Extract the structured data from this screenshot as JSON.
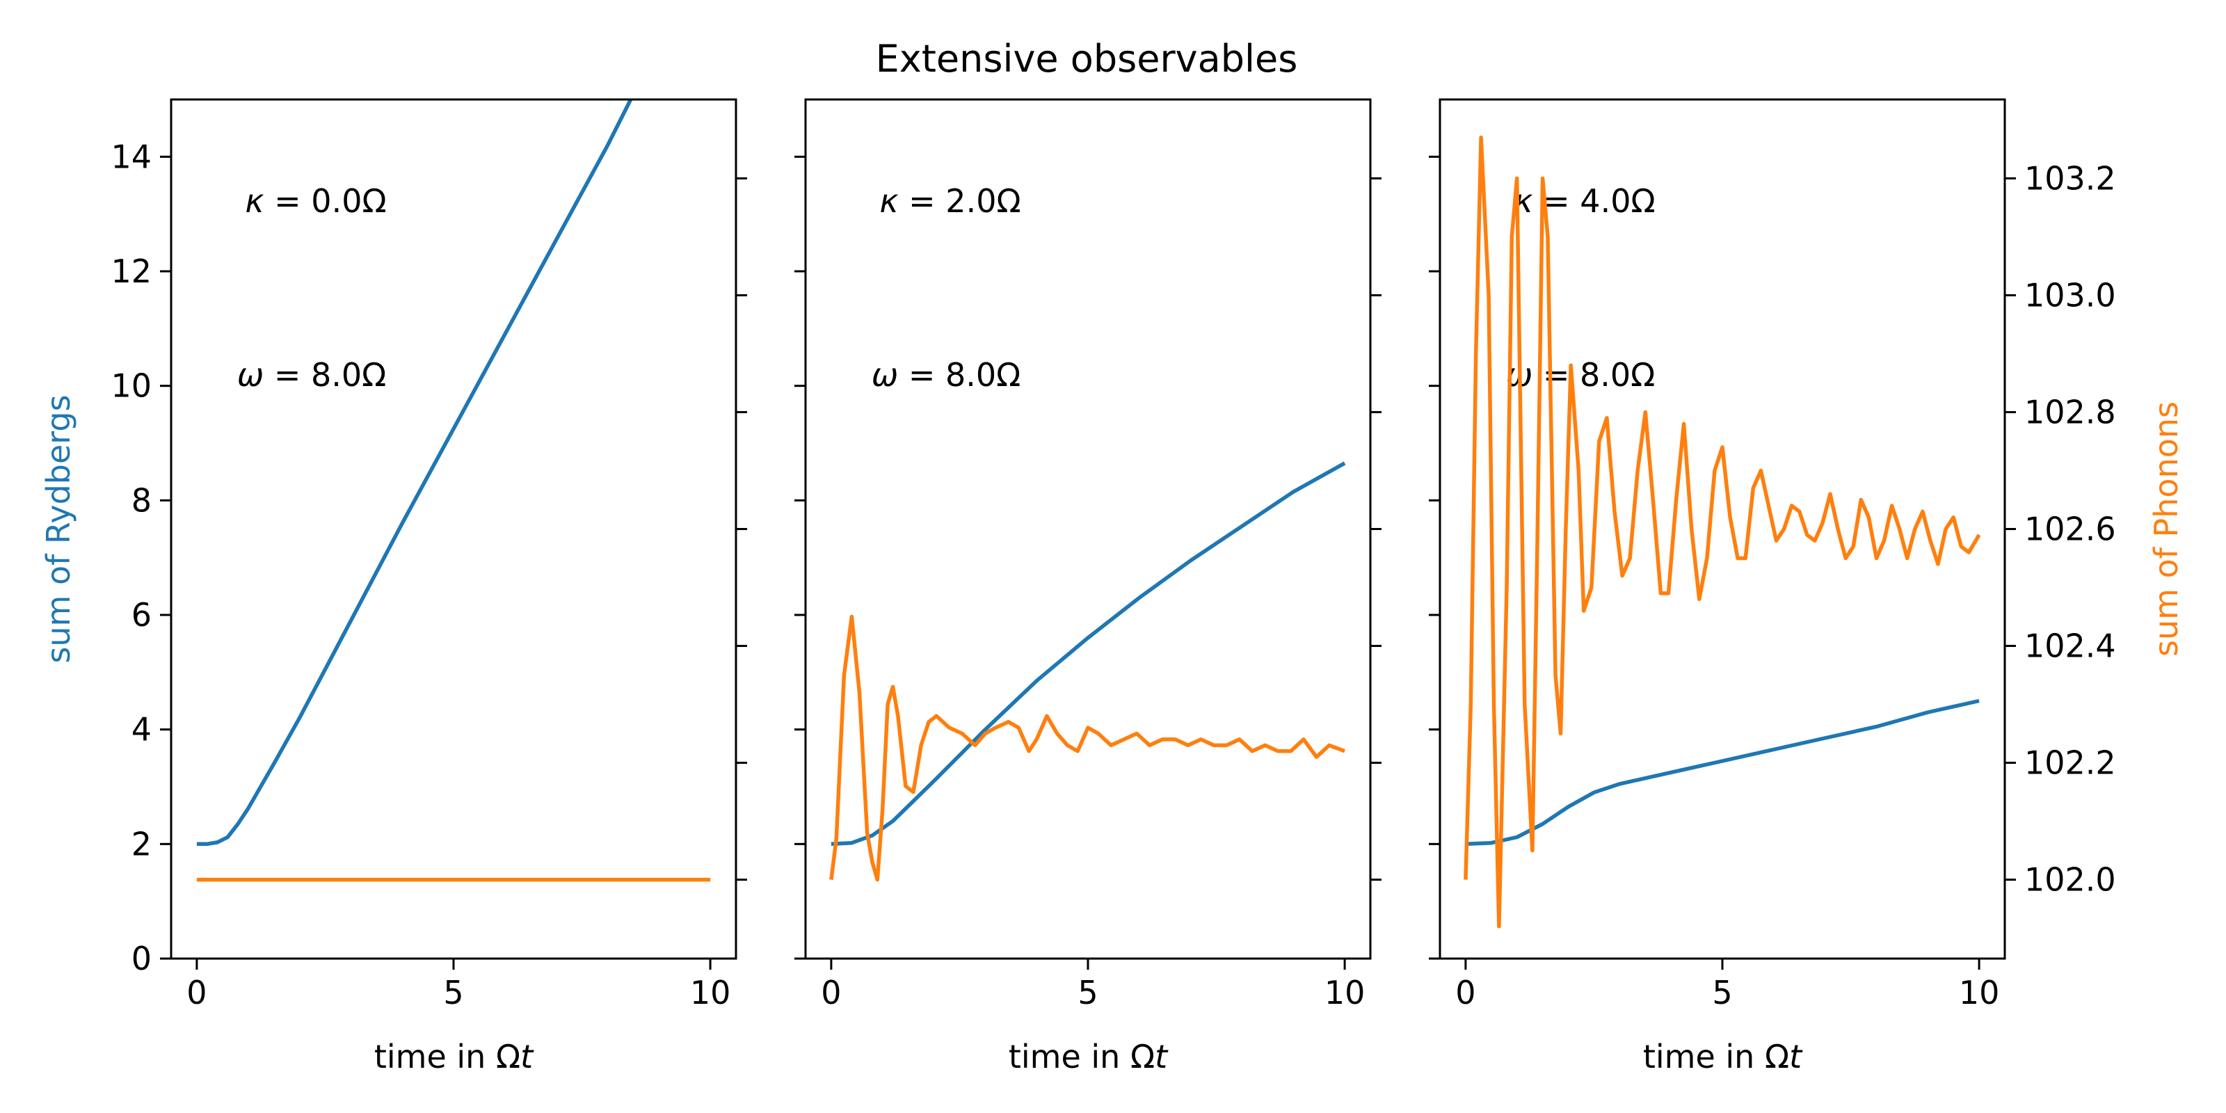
{
  "figure": {
    "title": "Extensive observables"
  },
  "colors": {
    "rydberg": "#1f77b4",
    "phonon": "#ff7f0e",
    "axis": "#000000"
  },
  "chart_data": [
    {
      "type": "line",
      "panel": 1,
      "xlabel": "time in Ωt",
      "ylabel_left": "sum of Rydbergs",
      "ylabel_right": "",
      "xlim": [
        -0.5,
        10.5
      ],
      "xticks": [
        0,
        5,
        10
      ],
      "xtick_labels": [
        "0",
        "5",
        "10"
      ],
      "ylim_left": [
        0,
        15
      ],
      "yticks_left": [
        0,
        2,
        4,
        6,
        8,
        10,
        12,
        14
      ],
      "ytick_labels_left": [
        "0",
        "2",
        "4",
        "6",
        "8",
        "10",
        "12",
        "14"
      ],
      "ylim_right": [
        101.865,
        103.335
      ],
      "yticks_right": [
        102.0,
        102.2,
        102.4,
        102.6,
        102.8,
        103.0,
        103.2
      ],
      "ytick_labels_right": [
        "",
        "",
        "",
        "",
        "",
        "",
        ""
      ],
      "annotations": [
        "κ = 0.0Ω",
        "ω = 8.0Ω"
      ],
      "series": [
        {
          "axis": "left",
          "color": "#1f77b4",
          "x": [
            0,
            0.2,
            0.4,
            0.6,
            0.8,
            1.0,
            1.5,
            2.0,
            2.5,
            3.0,
            4.0,
            5.0,
            6.0,
            7.0,
            8.0,
            8.45
          ],
          "y": [
            2.0,
            2.0,
            2.03,
            2.12,
            2.35,
            2.62,
            3.4,
            4.2,
            5.05,
            5.9,
            7.6,
            9.25,
            10.9,
            12.55,
            14.2,
            15.0
          ]
        },
        {
          "axis": "right",
          "color": "#ff7f0e",
          "x": [
            0,
            10
          ],
          "y": [
            102.0,
            102.0
          ]
        }
      ]
    },
    {
      "type": "line",
      "panel": 2,
      "xlabel": "time in Ωt",
      "ylabel_left": "",
      "ylabel_right": "",
      "xlim": [
        -0.5,
        10.5
      ],
      "xticks": [
        0,
        5,
        10
      ],
      "xtick_labels": [
        "0",
        "5",
        "10"
      ],
      "ylim_left": [
        0,
        15
      ],
      "yticks_left": [
        0,
        2,
        4,
        6,
        8,
        10,
        12,
        14
      ],
      "ytick_labels_left": [
        "",
        "",
        "",
        "",
        "",
        "",
        "",
        ""
      ],
      "ylim_right": [
        101.865,
        103.335
      ],
      "yticks_right": [
        102.0,
        102.2,
        102.4,
        102.6,
        102.8,
        103.0,
        103.2
      ],
      "ytick_labels_right": [
        "",
        "",
        "",
        "",
        "",
        "",
        ""
      ],
      "annotations": [
        "κ = 2.0Ω",
        "ω = 8.0Ω"
      ],
      "series": [
        {
          "axis": "left",
          "color": "#1f77b4",
          "x": [
            0,
            0.4,
            0.8,
            1.2,
            1.6,
            2.0,
            3.0,
            4.0,
            5.0,
            6.0,
            7.0,
            8.0,
            9.0,
            10.0
          ],
          "y": [
            2.0,
            2.02,
            2.15,
            2.4,
            2.75,
            3.1,
            4.0,
            4.85,
            5.6,
            6.3,
            6.95,
            7.55,
            8.15,
            8.65
          ]
        },
        {
          "axis": "right",
          "color": "#ff7f0e",
          "x": [
            0,
            0.1,
            0.25,
            0.4,
            0.55,
            0.7,
            0.8,
            0.9,
            1.0,
            1.1,
            1.2,
            1.3,
            1.45,
            1.6,
            1.75,
            1.9,
            2.05,
            2.3,
            2.55,
            2.8,
            3.0,
            3.2,
            3.45,
            3.65,
            3.85,
            4.0,
            4.2,
            4.4,
            4.6,
            4.8,
            5.0,
            5.2,
            5.45,
            5.7,
            5.95,
            6.2,
            6.45,
            6.7,
            6.95,
            7.2,
            7.45,
            7.7,
            7.95,
            8.2,
            8.45,
            8.7,
            8.95,
            9.2,
            9.45,
            9.7,
            10.0
          ],
          "y": [
            102.0,
            102.07,
            102.35,
            102.45,
            102.32,
            102.08,
            102.03,
            102.0,
            102.12,
            102.3,
            102.33,
            102.28,
            102.16,
            102.15,
            102.23,
            102.27,
            102.28,
            102.26,
            102.25,
            102.23,
            102.25,
            102.26,
            102.27,
            102.26,
            102.22,
            102.24,
            102.28,
            102.25,
            102.23,
            102.22,
            102.26,
            102.25,
            102.23,
            102.24,
            102.25,
            102.23,
            102.24,
            102.24,
            102.23,
            102.24,
            102.23,
            102.23,
            102.24,
            102.22,
            102.23,
            102.22,
            102.22,
            102.24,
            102.21,
            102.23,
            102.22
          ]
        }
      ]
    },
    {
      "type": "line",
      "panel": 3,
      "xlabel": "time in Ωt",
      "ylabel_left": "",
      "ylabel_right": "sum of Phonons",
      "xlim": [
        -0.5,
        10.5
      ],
      "xticks": [
        0,
        5,
        10
      ],
      "xtick_labels": [
        "0",
        "5",
        "10"
      ],
      "ylim_left": [
        0,
        15
      ],
      "yticks_left": [
        0,
        2,
        4,
        6,
        8,
        10,
        12,
        14
      ],
      "ytick_labels_left": [
        "",
        "",
        "",
        "",
        "",
        "",
        "",
        ""
      ],
      "ylim_right": [
        101.865,
        103.335
      ],
      "yticks_right": [
        102.0,
        102.2,
        102.4,
        102.6,
        102.8,
        103.0,
        103.2
      ],
      "ytick_labels_right": [
        "102.0",
        "102.2",
        "102.4",
        "102.6",
        "102.8",
        "103.0",
        "103.2"
      ],
      "annotations": [
        "κ = 4.0Ω",
        "ω = 8.0Ω"
      ],
      "series": [
        {
          "axis": "left",
          "color": "#1f77b4",
          "x": [
            0,
            0.5,
            1.0,
            1.5,
            2.0,
            2.5,
            3.0,
            4.0,
            5.0,
            6.0,
            7.0,
            8.0,
            9.0,
            10.0
          ],
          "y": [
            2.0,
            2.02,
            2.12,
            2.35,
            2.65,
            2.9,
            3.05,
            3.25,
            3.45,
            3.65,
            3.85,
            4.05,
            4.3,
            4.5
          ]
        },
        {
          "axis": "right",
          "color": "#ff7f0e",
          "x": [
            0,
            0.1,
            0.2,
            0.3,
            0.45,
            0.55,
            0.65,
            0.8,
            0.9,
            1.0,
            1.15,
            1.3,
            1.4,
            1.5,
            1.6,
            1.75,
            1.85,
            1.95,
            2.05,
            2.2,
            2.3,
            2.45,
            2.6,
            2.75,
            2.9,
            3.05,
            3.2,
            3.35,
            3.5,
            3.65,
            3.8,
            3.95,
            4.1,
            4.25,
            4.4,
            4.55,
            4.7,
            4.85,
            5.0,
            5.15,
            5.3,
            5.45,
            5.6,
            5.75,
            5.9,
            6.05,
            6.2,
            6.35,
            6.5,
            6.65,
            6.8,
            6.95,
            7.1,
            7.25,
            7.4,
            7.55,
            7.7,
            7.85,
            8.0,
            8.15,
            8.3,
            8.45,
            8.6,
            8.75,
            8.9,
            9.05,
            9.2,
            9.35,
            9.5,
            9.65,
            9.8,
            10.0
          ],
          "y": [
            102.0,
            102.3,
            102.9,
            103.27,
            103.0,
            102.3,
            101.92,
            102.5,
            103.1,
            103.2,
            102.3,
            102.05,
            102.6,
            103.2,
            103.1,
            102.35,
            102.25,
            102.6,
            102.88,
            102.7,
            102.46,
            102.5,
            102.75,
            102.79,
            102.63,
            102.52,
            102.55,
            102.7,
            102.8,
            102.65,
            102.49,
            102.49,
            102.65,
            102.78,
            102.6,
            102.48,
            102.55,
            102.7,
            102.74,
            102.62,
            102.55,
            102.55,
            102.67,
            102.7,
            102.64,
            102.58,
            102.6,
            102.64,
            102.63,
            102.59,
            102.58,
            102.61,
            102.66,
            102.6,
            102.55,
            102.57,
            102.65,
            102.62,
            102.55,
            102.58,
            102.64,
            102.6,
            102.55,
            102.6,
            102.63,
            102.58,
            102.54,
            102.6,
            102.62,
            102.57,
            102.56,
            102.59
          ]
        }
      ]
    }
  ]
}
